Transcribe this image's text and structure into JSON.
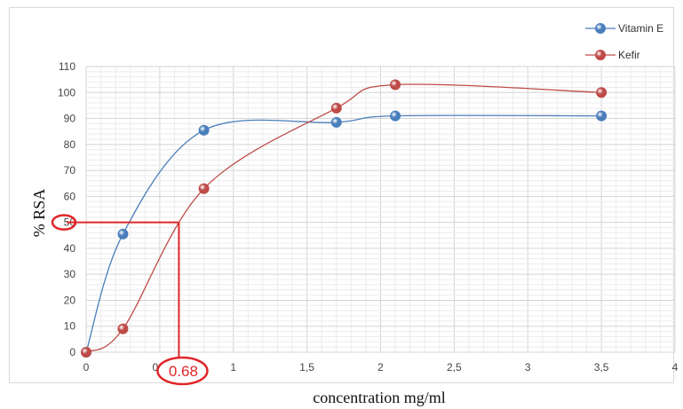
{
  "chart_data": {
    "type": "line",
    "title": "",
    "xlabel": "concentration mg/ml",
    "ylabel": "% RSA",
    "xlim": [
      0,
      4
    ],
    "ylim": [
      0,
      110
    ],
    "x_ticks": [
      "0",
      "0,5",
      "1",
      "1,5",
      "2",
      "2,5",
      "3",
      "3,5",
      "4"
    ],
    "y_ticks": [
      "0",
      "10",
      "20",
      "30",
      "40",
      "50",
      "60",
      "70",
      "80",
      "90",
      "100",
      "110"
    ],
    "grid": true,
    "smooth": true,
    "legend_position": "top-right",
    "series": [
      {
        "name": "Vitamin E",
        "color": "#4a7ebb",
        "x": [
          0,
          0.25,
          0.8,
          1.7,
          2.1,
          3.5
        ],
        "y": [
          0,
          45.5,
          85.5,
          88.5,
          91,
          91
        ]
      },
      {
        "name": "Kefir",
        "color": "#be4b48",
        "x": [
          0,
          0.25,
          0.8,
          1.7,
          2.1,
          3.5
        ],
        "y": [
          0,
          9,
          63,
          94,
          103,
          100
        ]
      }
    ],
    "annotations": [
      {
        "label": "0.68",
        "x": 0.63,
        "y": 50,
        "color": "#e0262a"
      }
    ]
  }
}
